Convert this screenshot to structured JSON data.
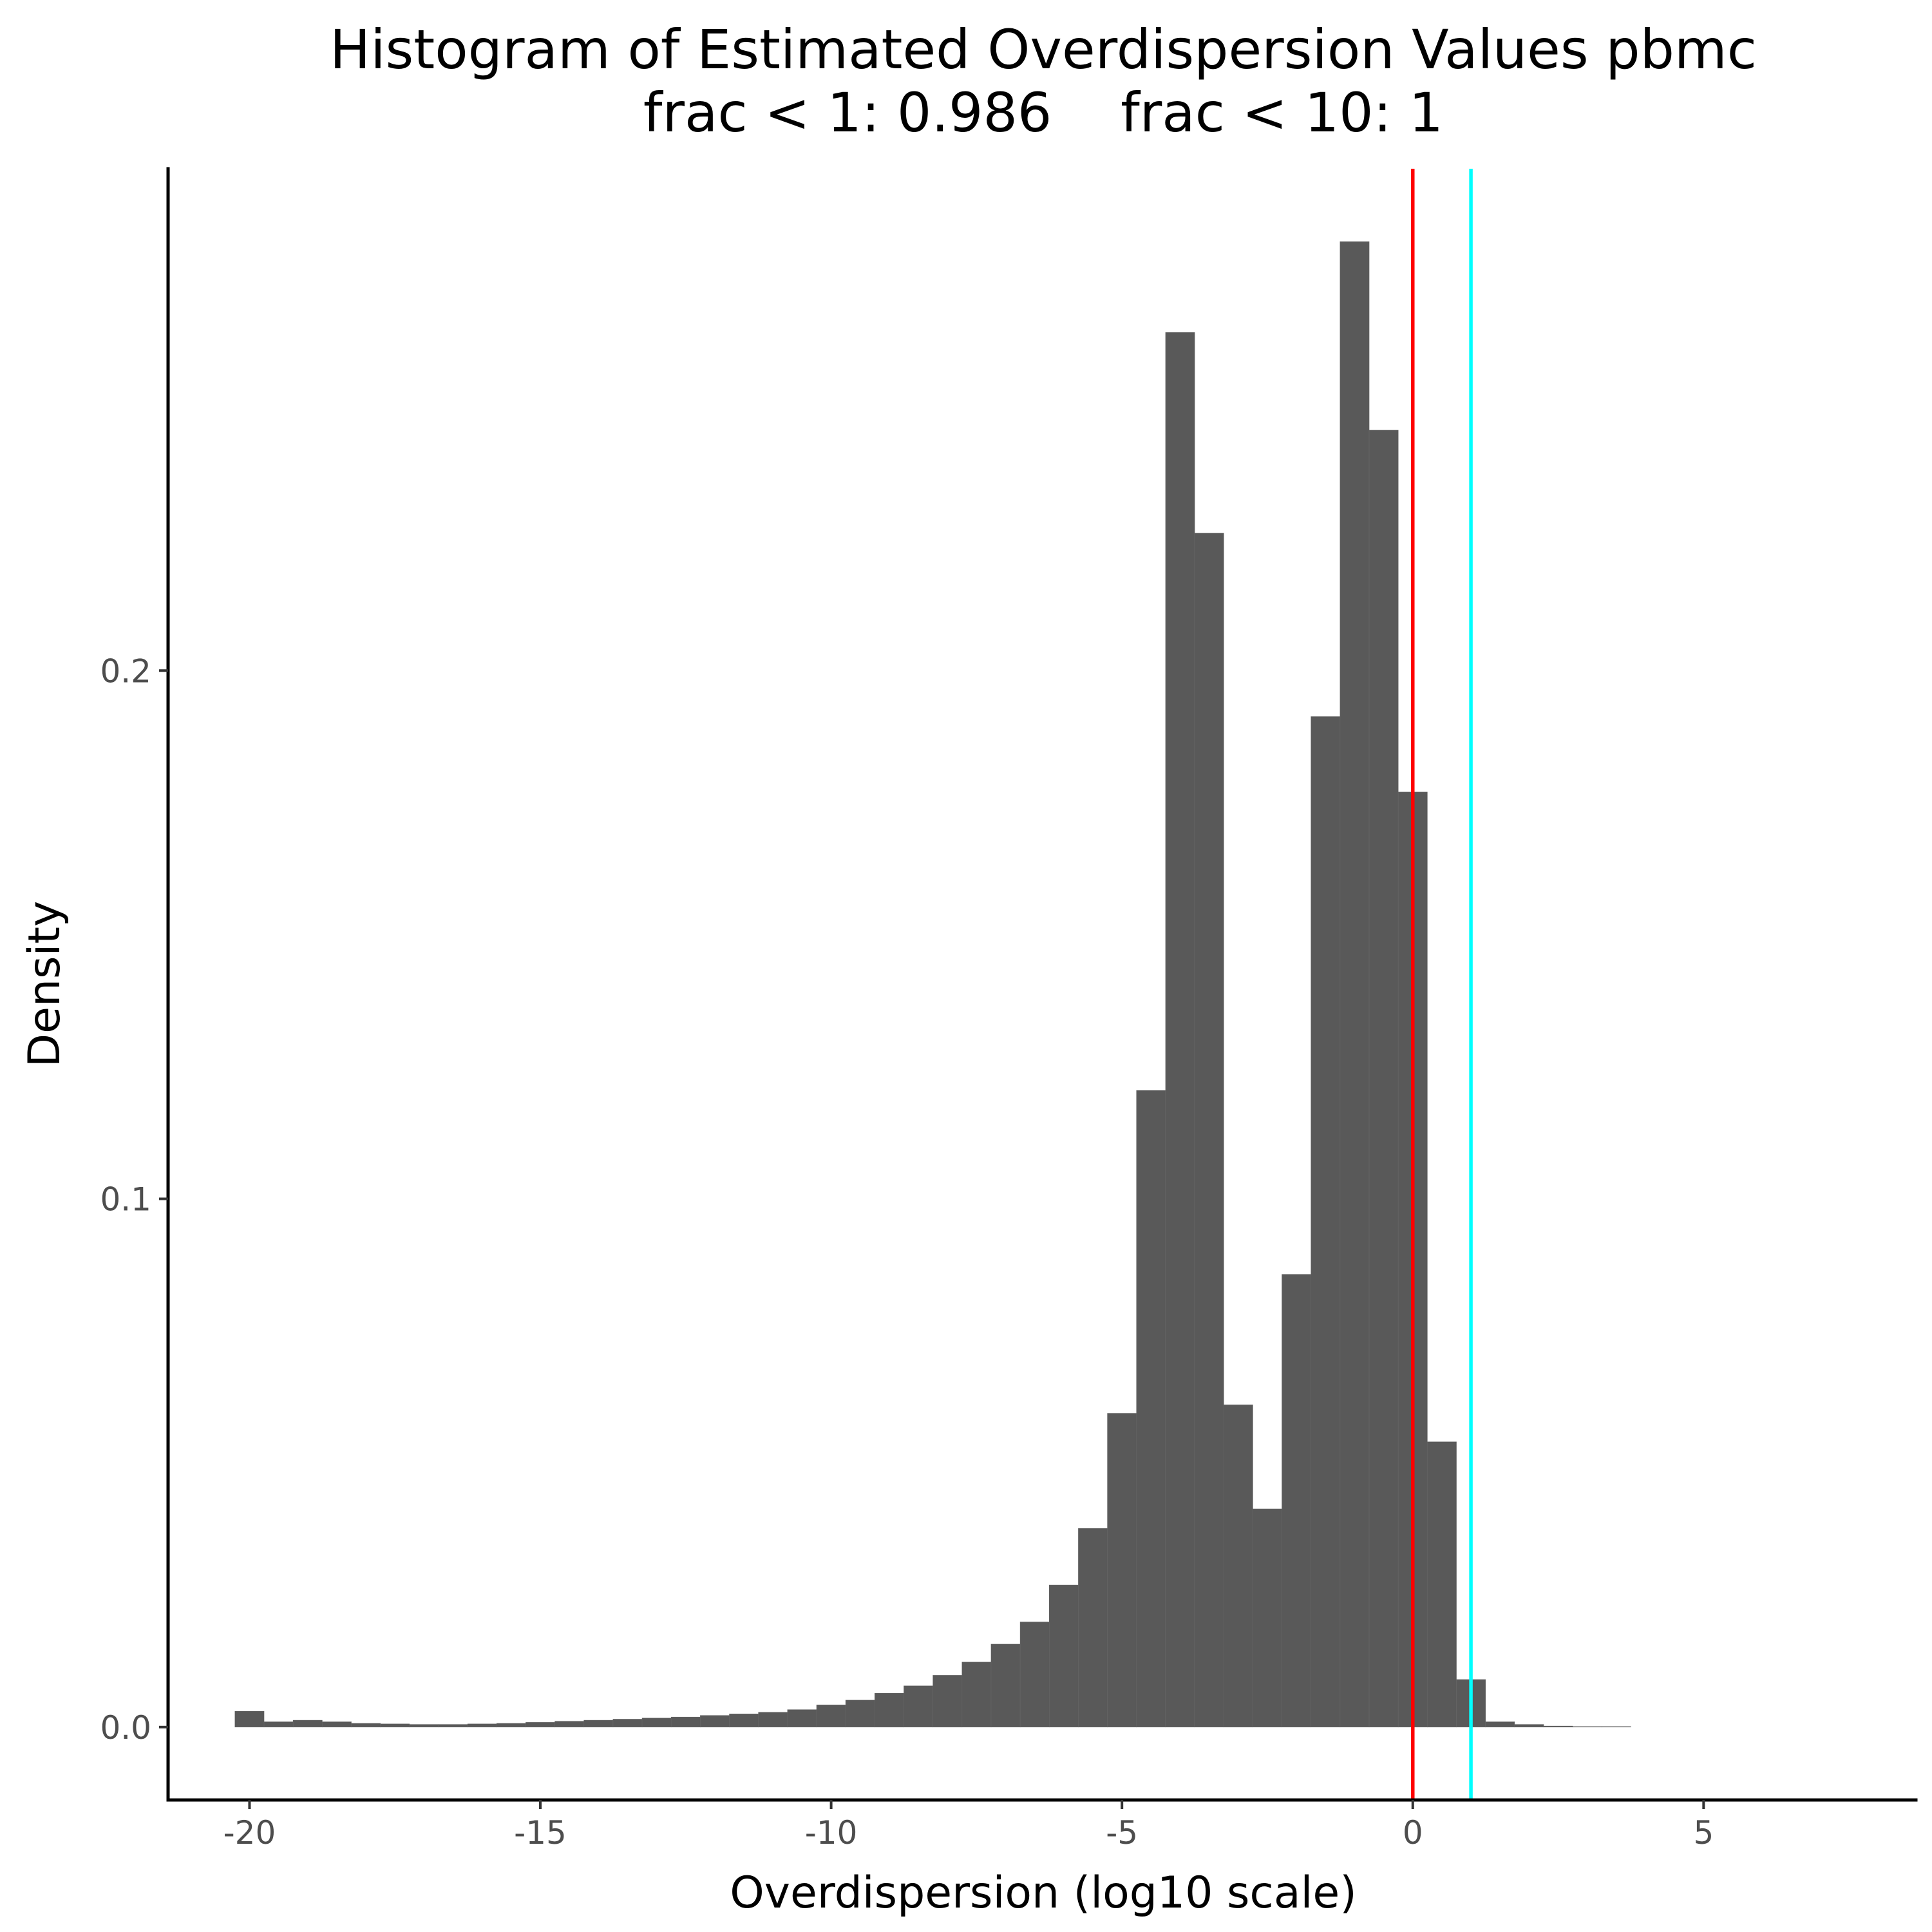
{
  "chart_data": {
    "type": "bar",
    "title": "Histogram of Estimated Overdispersion Values pbmc",
    "subtitle": "frac < 1: 0.986    frac < 10: 1",
    "xlabel": "Overdispersion (log10 scale)",
    "ylabel": "Density",
    "xlim": [
      -21.4,
      8.65
    ],
    "ylim": [
      -0.0138,
      0.295
    ],
    "xticks": [
      -20,
      -15,
      -10,
      -5,
      0,
      5
    ],
    "xtick_labels": [
      "-20",
      "-15",
      "-10",
      "-5",
      "0",
      "5"
    ],
    "yticks": [
      0.0,
      0.1,
      0.2
    ],
    "ytick_labels": [
      "0.0",
      "0.1",
      "0.2"
    ],
    "bin_width": 0.5,
    "bin_starts": [
      -20.25,
      -19.75,
      -19.25,
      -18.75,
      -18.25,
      -17.75,
      -17.25,
      -16.75,
      -16.25,
      -15.75,
      -15.25,
      -14.75,
      -14.25,
      -13.75,
      -13.25,
      -12.75,
      -12.25,
      -11.75,
      -11.25,
      -10.75,
      -10.25,
      -9.75,
      -9.25,
      -8.75,
      -8.25,
      -7.75,
      -7.25,
      -6.75,
      -6.25,
      -5.75,
      -5.25,
      -4.75,
      -4.25,
      -3.75,
      -3.25,
      -2.75,
      -2.25,
      -1.75,
      -1.25,
      -0.75,
      -0.25,
      0.25,
      0.75,
      1.25,
      1.75,
      2.25,
      2.75,
      3.25
    ],
    "values": [
      0.003,
      0.001,
      0.0013,
      0.001,
      0.0007,
      0.0006,
      0.0005,
      0.0005,
      0.0006,
      0.0007,
      0.0009,
      0.0011,
      0.0013,
      0.0015,
      0.0017,
      0.0019,
      0.0022,
      0.0025,
      0.0028,
      0.0033,
      0.0042,
      0.0051,
      0.0064,
      0.0078,
      0.0098,
      0.0123,
      0.0157,
      0.0199,
      0.0269,
      0.0376,
      0.0594,
      0.1205,
      0.264,
      0.226,
      0.061,
      0.0413,
      0.0857,
      0.1913,
      0.2812,
      0.2455,
      0.177,
      0.054,
      0.009,
      0.001,
      0.0005,
      0.0002,
      0.0001,
      0.0001
    ],
    "vlines": [
      {
        "x": 0,
        "color": "#ff0000"
      },
      {
        "x": 1,
        "color": "#00ffff"
      }
    ],
    "bar_color": "#595959",
    "grid": false,
    "legend": "none"
  }
}
